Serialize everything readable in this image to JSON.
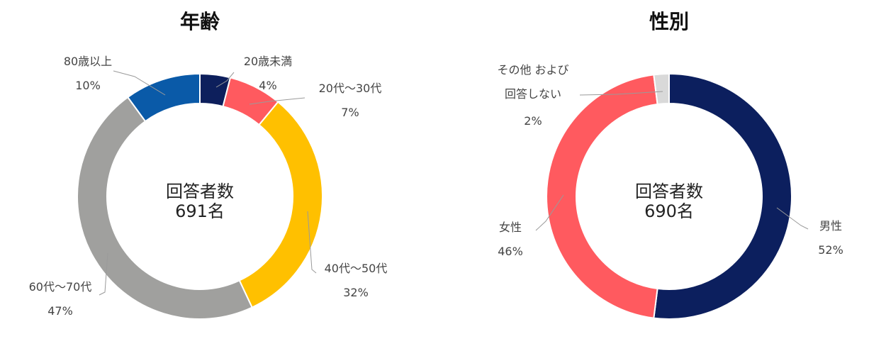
{
  "chart_data": [
    {
      "type": "pie",
      "title": "年齢",
      "center_text": [
        "回答者数",
        "691名"
      ],
      "slices": [
        {
          "label": "20歳未満",
          "pct_label": "4%",
          "value": 4,
          "color": "#0d1f5c"
        },
        {
          "label": "20代～30代",
          "pct_label": "7%",
          "value": 7,
          "color": "#ff5a5f"
        },
        {
          "label": "40代～50代",
          "pct_label": "32%",
          "value": 32,
          "color": "#ffc000"
        },
        {
          "label": "60代～70代",
          "pct_label": "47%",
          "value": 47,
          "color": "#a0a09e"
        },
        {
          "label": "80歳以上",
          "pct_label": "10%",
          "value": 10,
          "color": "#0a5aa8"
        }
      ],
      "legend": "none"
    },
    {
      "type": "pie",
      "title": "性別",
      "center_text": [
        "回答者数",
        "690名"
      ],
      "slices": [
        {
          "label": "男性",
          "pct_label": "52%",
          "value": 52,
          "color": "#0c1f5e"
        },
        {
          "label": "女性",
          "pct_label": "46%",
          "value": 46,
          "color": "#ff5a5f"
        },
        {
          "label": "その他 および\n回答しない",
          "pct_label": "2%",
          "value": 2,
          "color": "#d9d9d9"
        }
      ],
      "legend": "none"
    }
  ]
}
